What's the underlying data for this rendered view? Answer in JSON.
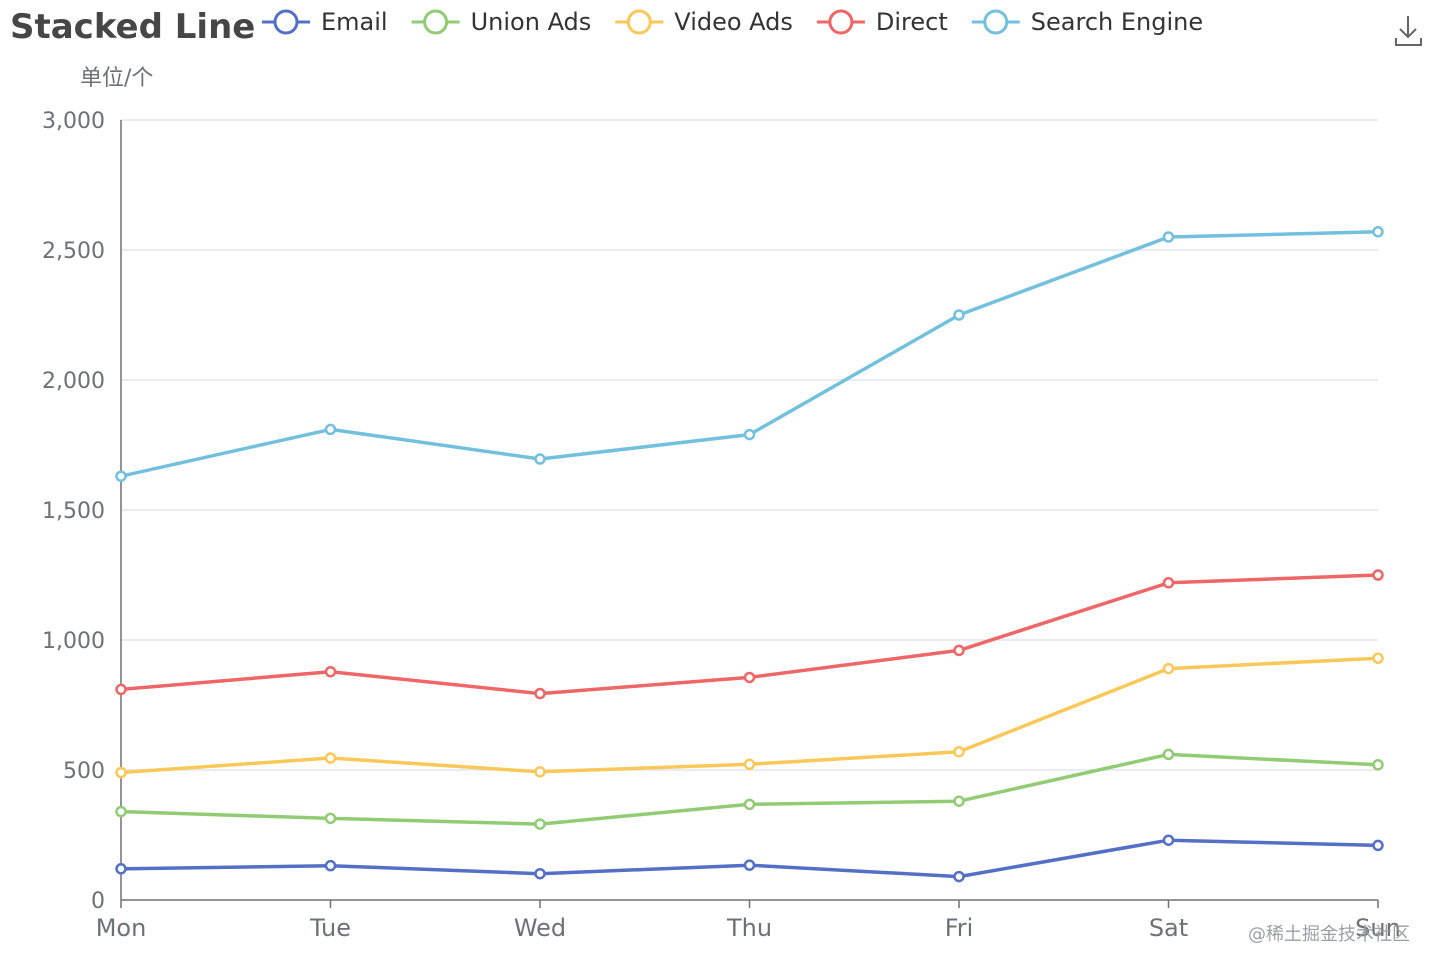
{
  "chart_data": {
    "type": "line",
    "title": "Stacked Line",
    "ylabel": "单位/个",
    "categories": [
      "Mon",
      "Tue",
      "Wed",
      "Thu",
      "Fri",
      "Sat",
      "Sun"
    ],
    "ylim": [
      0,
      3000
    ],
    "yticks": [
      "0",
      "500",
      "1,000",
      "1,500",
      "2,000",
      "2,500",
      "3,000"
    ],
    "grid": true,
    "legend_position": "top",
    "series": [
      {
        "name": "Email",
        "color": "#5470c6",
        "values": [
          120,
          132,
          101,
          134,
          90,
          230,
          210
        ]
      },
      {
        "name": "Union Ads",
        "color": "#91cc75",
        "values": [
          340,
          314,
          292,
          368,
          380,
          560,
          520
        ]
      },
      {
        "name": "Video Ads",
        "color": "#fac858",
        "values": [
          490,
          546,
          493,
          522,
          570,
          890,
          930
        ]
      },
      {
        "name": "Direct",
        "color": "#ee6666",
        "values": [
          810,
          878,
          794,
          856,
          960,
          1220,
          1250
        ]
      },
      {
        "name": "Search Engine",
        "color": "#73c0de",
        "values": [
          1630,
          1810,
          1696,
          1790,
          2250,
          2550,
          2570
        ]
      }
    ]
  },
  "toolbox": {
    "download_icon": "download-icon"
  },
  "watermark": "@稀土掘金技术社区"
}
